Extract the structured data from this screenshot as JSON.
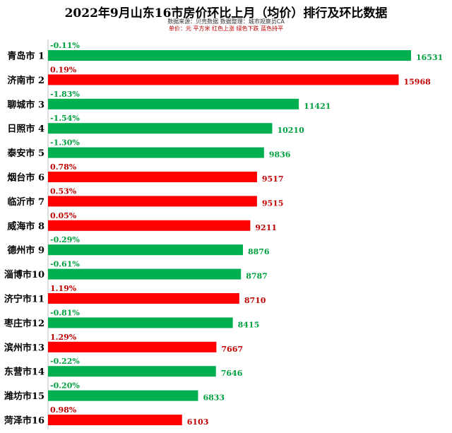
{
  "header": {
    "title": "2022年9月山东16市房价环比上月（均价）排行及环比数据",
    "source_line": "数据来源：贝壳数据    数据整理：城市观察员CA",
    "unit_line": "单价：元 平方米   红色上涨   绿色下跌   蓝色持平"
  },
  "colors": {
    "up": "#ff0000",
    "down": "#00b050",
    "pct_up": "#c00000",
    "pct_down": "#00a040",
    "val_up": "#c00000",
    "val_down": "#00a040"
  },
  "chart_data": {
    "type": "bar",
    "orientation": "horizontal",
    "categories": [
      "青岛市 1",
      "济南市 2",
      "聊城市 3",
      "日照市 4",
      "泰安市 5",
      "烟台市 6",
      "临沂市 7",
      "威海市 8",
      "德州市 9",
      "淄博市10",
      "济宁市11",
      "枣庄市12",
      "滨州市13",
      "东营市14",
      "潍坊市15",
      "菏泽市16"
    ],
    "values": [
      16531,
      15968,
      11421,
      10210,
      9836,
      9517,
      9515,
      9211,
      8876,
      8787,
      8710,
      8415,
      7667,
      7646,
      6833,
      6103
    ],
    "changes": [
      "-0.11%",
      "0.19%",
      "-1.83%",
      "-1.54%",
      "-1.30%",
      "0.78%",
      "0.53%",
      "0.05%",
      "-0.29%",
      "-0.61%",
      "1.19%",
      "-0.81%",
      "1.29%",
      "-0.22%",
      "-0.20%",
      "0.98%"
    ],
    "direction": [
      "down",
      "up",
      "down",
      "down",
      "down",
      "up",
      "up",
      "up",
      "down",
      "down",
      "up",
      "down",
      "up",
      "down",
      "down",
      "up"
    ],
    "xlim": [
      0,
      16531
    ],
    "grid": false
  }
}
